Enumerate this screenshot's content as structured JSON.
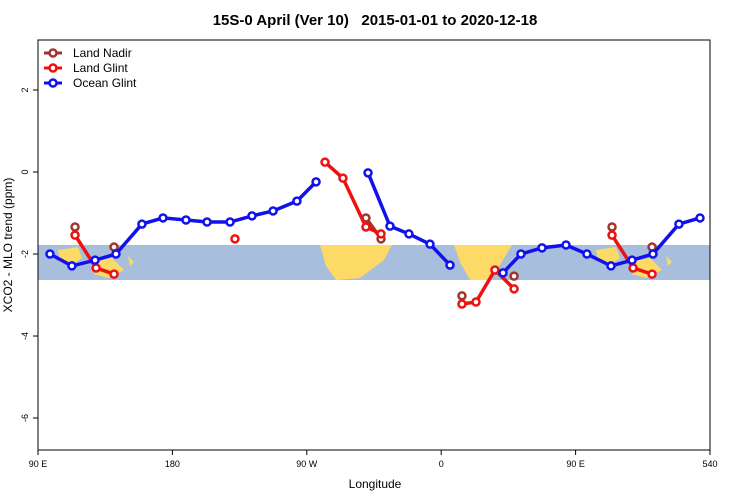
{
  "chart_data": {
    "type": "line",
    "title": "15S-0 April (Ver 10)   2015-01-01 to 2020-12-18",
    "x_label": "Longitude",
    "y_label": "XCO2 - MLO trend (ppm)",
    "xlim": [
      90,
      540
    ],
    "xticks": [
      {
        "value": 90,
        "label": "90 E"
      },
      180,
      {
        "value": 270,
        "label": "90 W"
      },
      {
        "value": 360,
        "label": "0"
      },
      {
        "value": 450,
        "label": "90 E"
      },
      540
    ],
    "ylim": [
      -6.78,
      3.22
    ],
    "yticks": [
      -6,
      -4,
      -2,
      0,
      2
    ],
    "legend": "top-left",
    "series": [
      {
        "name": "Land Nadir",
        "color": "#a0352f",
        "x": [
          114.8,
          null,
          140.9,
          null,
          309.6,
          319.7,
          null,
          373.9,
          null,
          408.8,
          null,
          474.4,
          null,
          501.2
        ],
        "values": [
          -1.34,
          null,
          -1.83,
          null,
          -1.12,
          -1.63,
          null,
          -3.02,
          null,
          -2.54,
          null,
          -1.34,
          null,
          -1.83
        ]
      },
      {
        "name": "Land Glint",
        "color": "#ee1111",
        "x": [
          114.8,
          128.9,
          140.9,
          null,
          221.9,
          null,
          282.2,
          294.2,
          309.6,
          319.7,
          null,
          373.9,
          383.3,
          396.0,
          408.8,
          null,
          474.4,
          488.5,
          501.2
        ],
        "values": [
          -1.54,
          -2.34,
          -2.49,
          null,
          -1.63,
          null,
          0.24,
          -0.15,
          -1.34,
          -1.51,
          null,
          -3.22,
          -3.17,
          -2.39,
          -2.85,
          null,
          -1.54,
          -2.34,
          -2.49
        ]
      },
      {
        "name": "Ocean Glint",
        "color": "#1111ee",
        "x": [
          98,
          112.7,
          128.2,
          142.2,
          159.6,
          173.7,
          189.1,
          203.2,
          218.6,
          233.3,
          247.4,
          263.4,
          276.2,
          null,
          311,
          325.7,
          338.4,
          352.5,
          365.9,
          null,
          401.4,
          413.4,
          427.5,
          443.6,
          457.6,
          473.7,
          487.8,
          501.8,
          519.2,
          533.3
        ],
        "values": [
          -2.0,
          -2.29,
          -2.15,
          -2.0,
          -1.27,
          -1.12,
          -1.17,
          -1.22,
          -1.22,
          -1.07,
          -0.95,
          -0.71,
          -0.24,
          null,
          -0.02,
          -1.32,
          -1.51,
          -1.76,
          -2.27,
          null,
          -2.46,
          -2.0,
          -1.85,
          -1.78,
          -2.0,
          -2.29,
          -2.15,
          -2.0,
          -1.27,
          -1.12
        ]
      }
    ]
  }
}
